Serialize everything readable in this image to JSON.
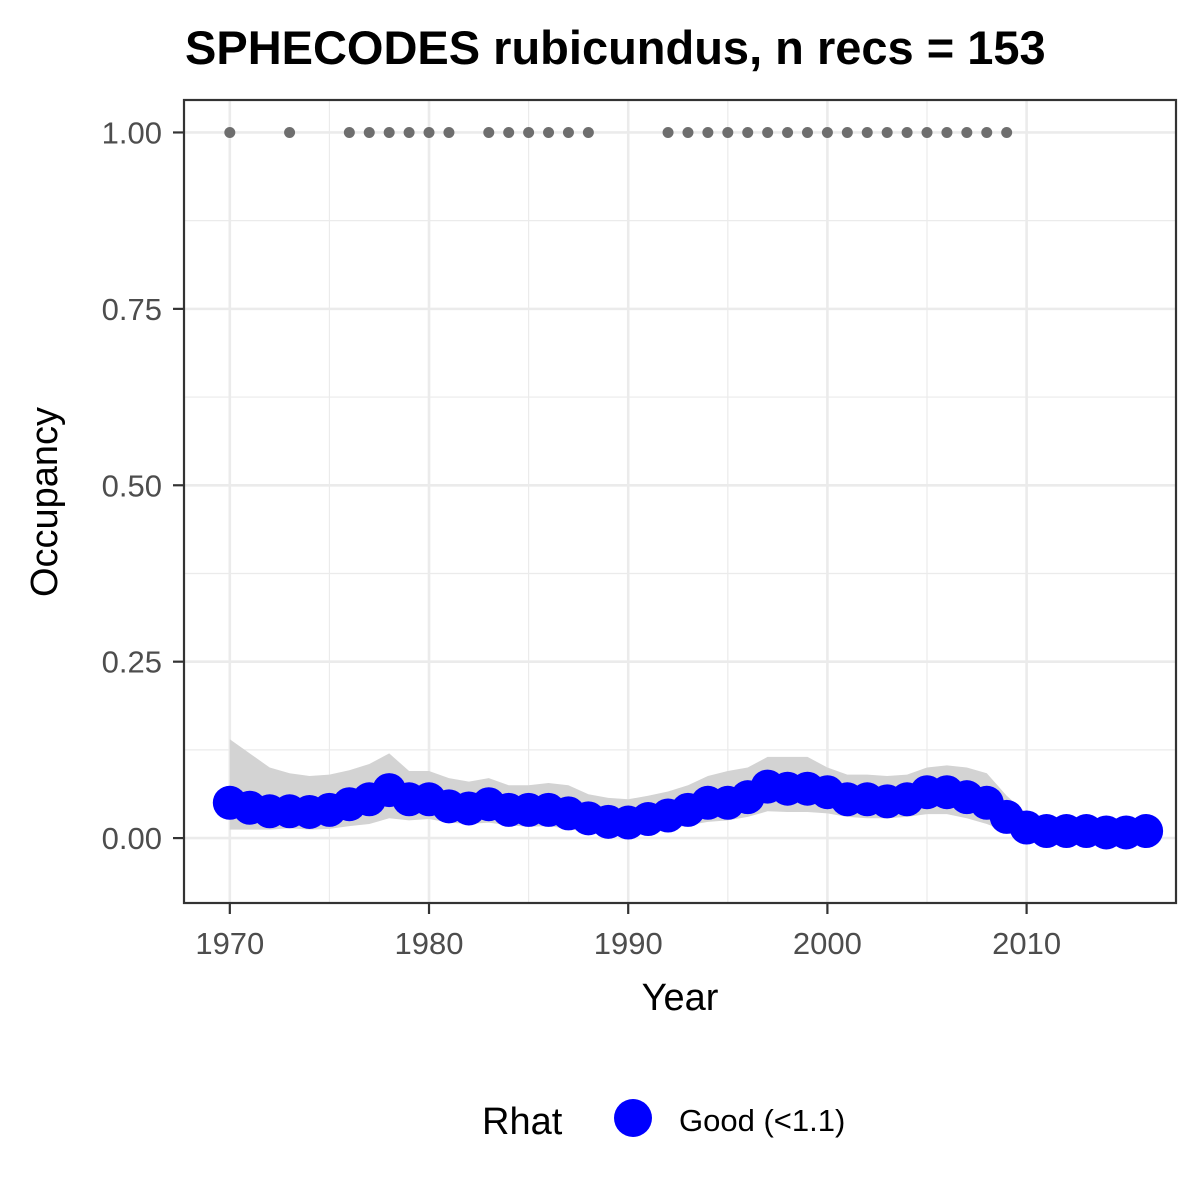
{
  "chart_data": {
    "type": "line",
    "title": "SPHECODES rubicundus, n recs = 153",
    "xlabel": "Year",
    "ylabel": "Occupancy",
    "xlim": [
      1967.7,
      2017.5
    ],
    "ylim": [
      -0.092,
      1.046
    ],
    "x_ticks": [
      1970,
      1980,
      1990,
      2000,
      2010
    ],
    "x_tick_labels": [
      "1970",
      "1980",
      "1990",
      "2000",
      "2010"
    ],
    "y_ticks": [
      0,
      0.25,
      0.5,
      0.75,
      1.0
    ],
    "y_tick_labels": [
      "0.00",
      "0.25",
      "0.50",
      "0.75",
      "1.00"
    ],
    "grid": true,
    "legend": {
      "title": "Rhat",
      "position": "bottom",
      "items": [
        {
          "label": "Good (<1.1)",
          "color": "#0000ff"
        }
      ]
    },
    "colors": {
      "occupancy": "#0000ff",
      "ribbon": "#d3d3d3",
      "records": "#6e6e6e",
      "grid": "#ebebeb",
      "panel_border": "#333333"
    },
    "series": [
      {
        "name": "Good (<1.1)",
        "x": [
          1970,
          1971,
          1972,
          1973,
          1974,
          1975,
          1976,
          1977,
          1978,
          1979,
          1980,
          1981,
          1982,
          1983,
          1984,
          1985,
          1986,
          1987,
          1988,
          1989,
          1990,
          1991,
          1992,
          1993,
          1994,
          1995,
          1996,
          1997,
          1998,
          1999,
          2000,
          2001,
          2002,
          2003,
          2004,
          2005,
          2006,
          2007,
          2008,
          2009,
          2010,
          2011,
          2012,
          2013,
          2014,
          2015,
          2016
        ],
        "y": [
          0.05,
          0.043,
          0.038,
          0.038,
          0.037,
          0.04,
          0.048,
          0.055,
          0.068,
          0.055,
          0.055,
          0.045,
          0.042,
          0.048,
          0.04,
          0.04,
          0.04,
          0.035,
          0.028,
          0.023,
          0.022,
          0.027,
          0.032,
          0.04,
          0.05,
          0.05,
          0.058,
          0.073,
          0.07,
          0.07,
          0.065,
          0.055,
          0.055,
          0.052,
          0.055,
          0.065,
          0.065,
          0.058,
          0.05,
          0.03,
          0.015,
          0.01,
          0.01,
          0.01,
          0.008,
          0.008,
          0.01
        ],
        "lower": [
          0.012,
          0.012,
          0.012,
          0.014,
          0.012,
          0.013,
          0.017,
          0.02,
          0.028,
          0.025,
          0.027,
          0.022,
          0.02,
          0.022,
          0.018,
          0.016,
          0.017,
          0.013,
          0.008,
          0.004,
          0.003,
          0.007,
          0.012,
          0.018,
          0.023,
          0.025,
          0.03,
          0.038,
          0.037,
          0.037,
          0.035,
          0.03,
          0.028,
          0.028,
          0.03,
          0.034,
          0.034,
          0.028,
          0.02,
          0.009,
          0.002,
          0.001,
          0.001,
          0.001,
          0.0,
          0.0,
          0.0
        ],
        "upper": [
          0.14,
          0.12,
          0.1,
          0.092,
          0.088,
          0.09,
          0.096,
          0.105,
          0.12,
          0.095,
          0.095,
          0.085,
          0.08,
          0.085,
          0.075,
          0.075,
          0.078,
          0.075,
          0.062,
          0.057,
          0.055,
          0.06,
          0.066,
          0.075,
          0.088,
          0.095,
          0.1,
          0.115,
          0.115,
          0.115,
          0.1,
          0.09,
          0.09,
          0.088,
          0.09,
          0.1,
          0.103,
          0.1,
          0.092,
          0.06,
          0.035,
          0.025,
          0.024,
          0.024,
          0.022,
          0.022,
          0.024
        ]
      }
    ],
    "records": {
      "y": 1.0,
      "years": [
        1970,
        1973,
        1976,
        1977,
        1978,
        1979,
        1980,
        1981,
        1983,
        1984,
        1985,
        1986,
        1987,
        1988,
        1992,
        1993,
        1994,
        1995,
        1996,
        1997,
        1998,
        1999,
        2000,
        2001,
        2002,
        2003,
        2004,
        2005,
        2006,
        2007,
        2008,
        2009
      ]
    }
  }
}
